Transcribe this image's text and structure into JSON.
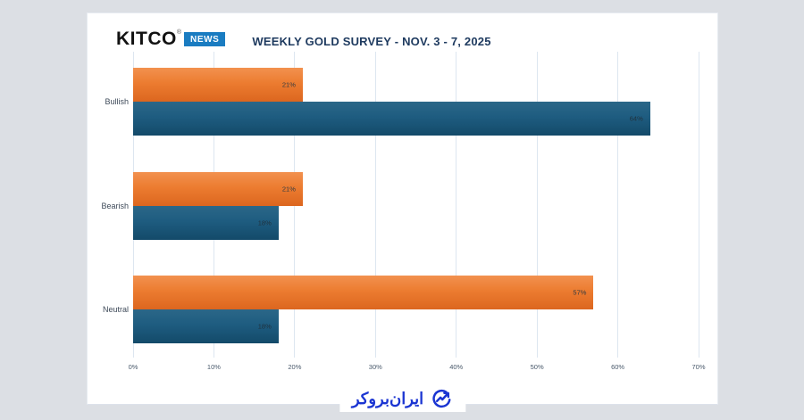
{
  "header": {
    "brand": {
      "name": "KITCO",
      "reg": "®",
      "badge": "NEWS"
    },
    "title": "WEEKLY GOLD SURVEY - NOV. 3 - 7, 2025"
  },
  "chart_data": {
    "type": "bar",
    "orientation": "horizontal",
    "title": "WEEKLY GOLD SURVEY - NOV. 3 - 7, 2025",
    "categories": [
      "Bullish",
      "Bearish",
      "Neutral"
    ],
    "series": [
      {
        "name": "orange",
        "color": "#ed7d31",
        "values": [
          21,
          21,
          57
        ],
        "labels": [
          "21%",
          "21%",
          "57%"
        ]
      },
      {
        "name": "blue",
        "color": "#1d5b7e",
        "values": [
          64,
          18,
          18
        ],
        "labels": [
          "64%",
          "18%",
          "18%"
        ]
      }
    ],
    "x_axis": {
      "ticks": [
        "0%",
        "10%",
        "20%",
        "30%",
        "40%",
        "50%",
        "60%",
        "70%"
      ],
      "tick_values": [
        0,
        10,
        20,
        30,
        40,
        50,
        60,
        70
      ],
      "max": 70
    },
    "grid": true,
    "legend": false
  },
  "footer": {
    "logo_text": "ایران‌بروکر",
    "logo_color": "#1b35d2",
    "icon": "trend-circle-arrow-icon"
  }
}
